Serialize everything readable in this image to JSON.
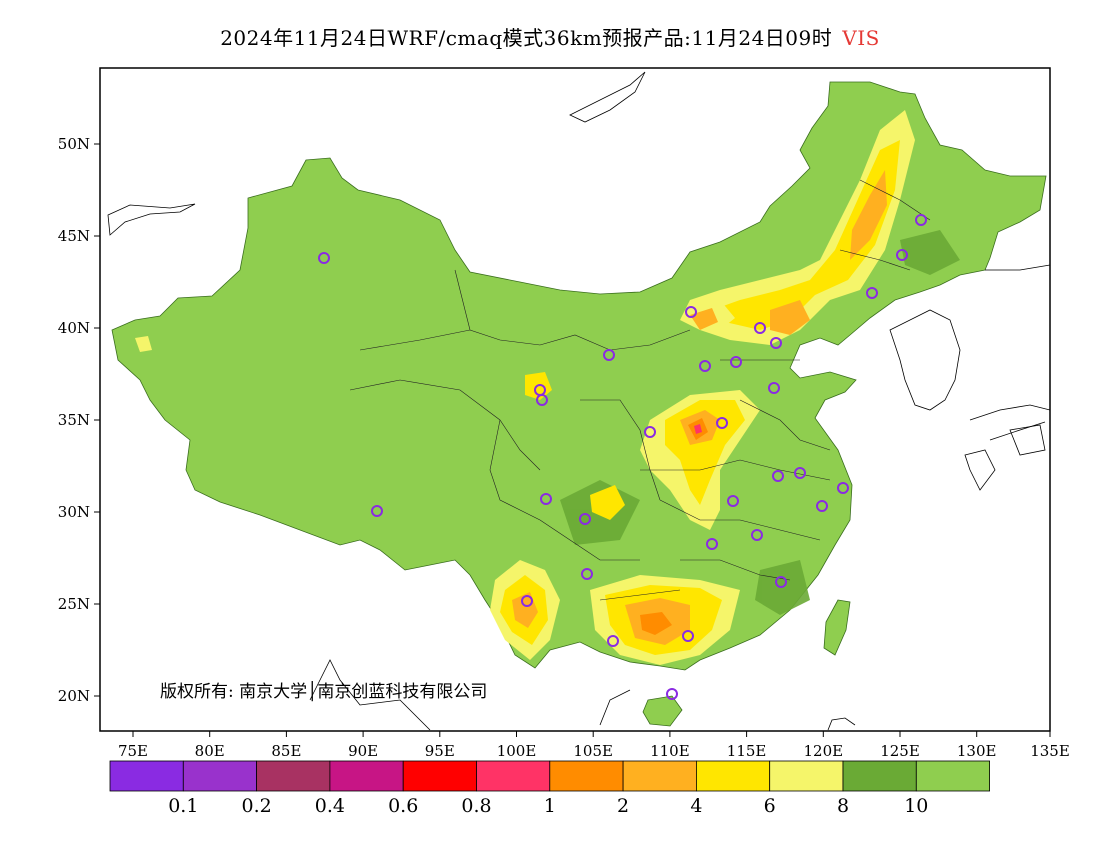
{
  "title": {
    "main": "2024年11月24日WRF/cmaq模式36km预报产品:11月24日09时",
    "variable": "VIS"
  },
  "map": {
    "lon_labels": [
      "75E",
      "80E",
      "85E",
      "90E",
      "95E",
      "100E",
      "105E",
      "110E",
      "115E",
      "120E",
      "125E",
      "130E",
      "135E"
    ],
    "lat_labels": [
      "50N",
      "45N",
      "40N",
      "35N",
      "30N",
      "25N",
      "20N"
    ],
    "copyright": "版权所有: 南京大学│南京创蓝科技有限公司"
  },
  "legend": {
    "colors": [
      "#8a2be2",
      "#9932cc",
      "#a83262",
      "#c71585",
      "#ff0000",
      "#ff3366",
      "#ff8c00",
      "#ffb020",
      "#ffe600",
      "#f5f56a",
      "#6aaa35",
      "#8fce4f"
    ],
    "labels": [
      "0.1",
      "0.2",
      "0.4",
      "0.6",
      "0.8",
      "1",
      "2",
      "4",
      "6",
      "8",
      "10"
    ]
  },
  "colors": {
    "base_green": "#8fce4f",
    "dark_green": "#6aaa35",
    "station_marker": "#8a2be2"
  }
}
